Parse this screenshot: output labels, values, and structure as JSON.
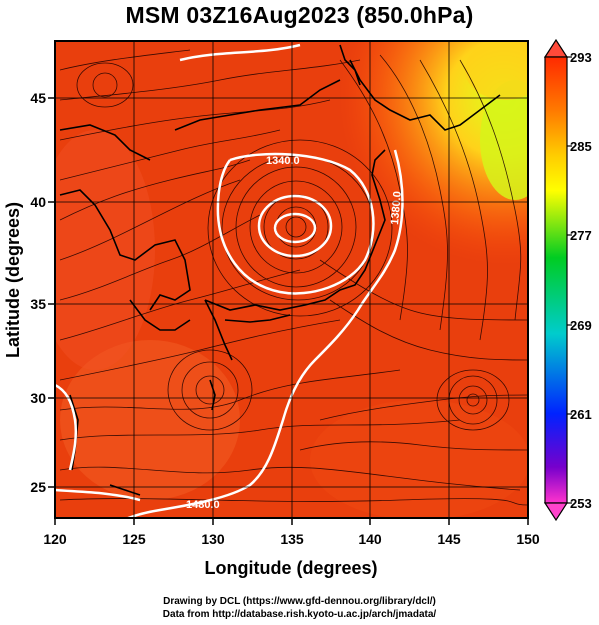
{
  "title": "MSM 03Z16Aug2023 (850.0hPa)",
  "axes": {
    "xlabel": "Longitude (degrees)",
    "ylabel": "Latitude  (degrees)",
    "xticks": [
      "120",
      "125",
      "130",
      "135",
      "140",
      "145",
      "150"
    ],
    "yticks": [
      "25",
      "30",
      "35",
      "40",
      "45"
    ]
  },
  "colorbar": {
    "labels": [
      "293",
      "285",
      "277",
      "269",
      "261",
      "253"
    ],
    "colors": [
      "#ff0000",
      "#ff8800",
      "#ffff00",
      "#00cc00",
      "#00cccc",
      "#0000ff",
      "#ff33cc"
    ]
  },
  "contour_labels": [
    "1340.0",
    "1480.0",
    "1380.0"
  ],
  "credits": {
    "line1": "Drawing by DCL (https://www.gfd-dennou.org/library/dcl/)",
    "line2": "Data from http://database.rish.kyoto-u.ac.jp/arch/jmadata/"
  },
  "chart_data": {
    "type": "heatmap",
    "title": "MSM 03Z16Aug2023 (850.0hPa)",
    "xlabel": "Longitude (degrees)",
    "ylabel": "Latitude  (degrees)",
    "xlim": [
      120,
      150
    ],
    "ylim": [
      22.5,
      47.5
    ],
    "colorbar_range": [
      253,
      293
    ],
    "colorbar_ticks": [
      293,
      285,
      277,
      269,
      261,
      253
    ],
    "grid": true
  }
}
